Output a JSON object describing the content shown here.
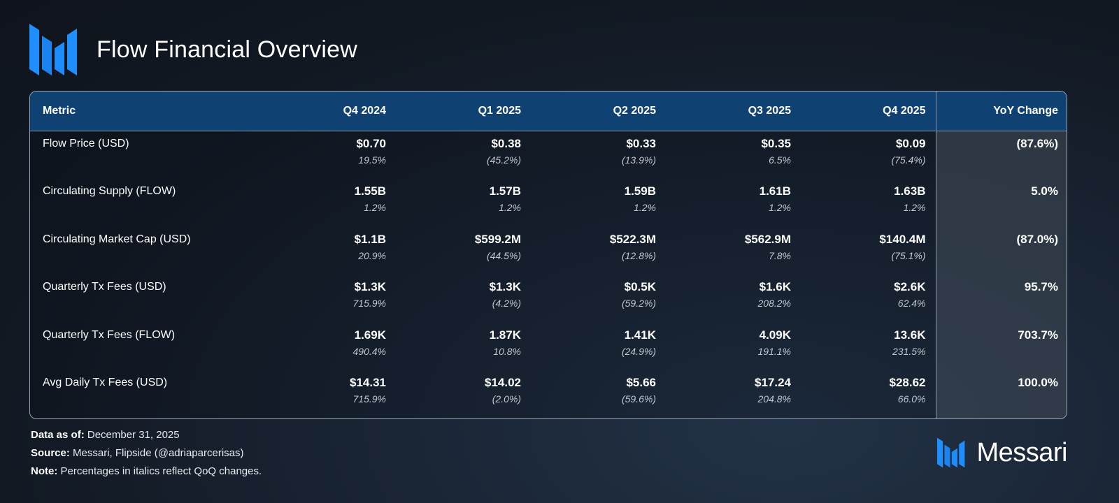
{
  "header": {
    "title": "Flow Financial Overview",
    "logo_icon": "messari-m-logo-icon",
    "accent_color": "#1a8cff"
  },
  "table": {
    "columns": [
      "Metric",
      "Q4 2024",
      "Q1 2025",
      "Q2 2025",
      "Q3 2025",
      "Q4 2025",
      "YoY Change"
    ],
    "rows": [
      {
        "metric": "Flow Price (USD)",
        "values": [
          "$0.70",
          "$0.38",
          "$0.33",
          "$0.35",
          "$0.09"
        ],
        "changes": [
          "19.5%",
          "(45.2%)",
          "(13.9%)",
          "6.5%",
          "(75.4%)"
        ],
        "yoy": "(87.6%)"
      },
      {
        "metric": "Circulating Supply (FLOW)",
        "values": [
          "1.55B",
          "1.57B",
          "1.59B",
          "1.61B",
          "1.63B"
        ],
        "changes": [
          "1.2%",
          "1.2%",
          "1.2%",
          "1.2%",
          "1.2%"
        ],
        "yoy": "5.0%"
      },
      {
        "metric": "Circulating Market Cap (USD)",
        "values": [
          "$1.1B",
          "$599.2M",
          "$522.3M",
          "$562.9M",
          "$140.4M"
        ],
        "changes": [
          "20.9%",
          "(44.5%)",
          "(12.8%)",
          "7.8%",
          "(75.1%)"
        ],
        "yoy": "(87.0%)"
      },
      {
        "metric": "Quarterly Tx Fees (USD)",
        "values": [
          "$1.3K",
          "$1.3K",
          "$0.5K",
          "$1.6K",
          "$2.6K"
        ],
        "changes": [
          "715.9%",
          "(4.2%)",
          "(59.2%)",
          "208.2%",
          "62.4%"
        ],
        "yoy": "95.7%"
      },
      {
        "metric": "Quarterly Tx Fees (FLOW)",
        "values": [
          "1.69K",
          "1.87K",
          "1.41K",
          "4.09K",
          "13.6K"
        ],
        "changes": [
          "490.4%",
          "10.8%",
          "(24.9%)",
          "191.1%",
          "231.5%"
        ],
        "yoy": "703.7%"
      },
      {
        "metric": "Avg Daily Tx Fees (USD)",
        "values": [
          "$14.31",
          "$14.02",
          "$5.66",
          "$17.24",
          "$28.62"
        ],
        "changes": [
          "715.9%",
          "(2.0%)",
          "(59.6%)",
          "204.8%",
          "66.0%"
        ],
        "yoy": "100.0%"
      }
    ]
  },
  "footer": {
    "data_as_of_label": "Data as of:",
    "data_as_of_value": "December 31, 2025",
    "source_label": "Source:",
    "source_value": "Messari, Flipside (@adriaparcerisas)",
    "note_label": "Note:",
    "note_value": "Percentages in italics reflect QoQ changes."
  },
  "brand": {
    "name": "Messari",
    "logo_icon": "messari-m-logo-icon"
  }
}
